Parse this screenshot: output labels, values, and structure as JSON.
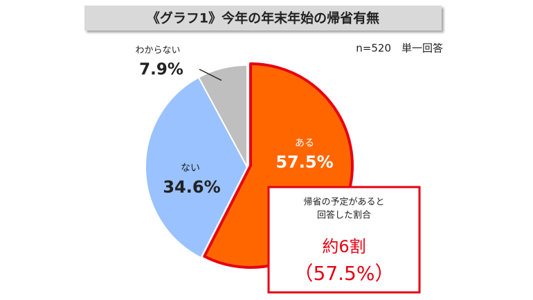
{
  "chart_data": {
    "type": "pie",
    "title": "《グラフ1》今年の年末年始の帰省有無",
    "subtitle": "n=520　単一回答",
    "categories": [
      "ある",
      "ない",
      "わからない"
    ],
    "values": [
      57.5,
      34.6,
      7.9
    ],
    "value_labels": [
      "57.5%",
      "34.6%",
      "7.9%"
    ],
    "colors": [
      "#ff6600",
      "#99c2ff",
      "#bfbfbf"
    ],
    "annotation": {
      "lines": [
        "帰省の予定があると",
        "回答した割合"
      ],
      "headline": "約6割",
      "detail": "（57.5%）"
    }
  }
}
